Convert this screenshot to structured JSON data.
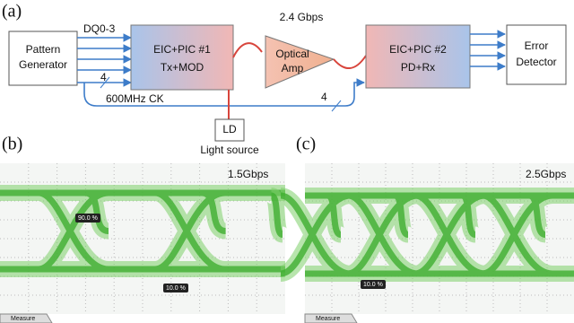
{
  "diagram": {
    "label": "(a)",
    "pattern_generator": [
      "Pattern",
      "Generator"
    ],
    "dq_label": "DQ0-3",
    "bus_width_tx": "4",
    "clock_label": "600MHz CK",
    "bus_width_rx": "4",
    "eic1": [
      "EIC+PIC #1",
      "Tx+MOD"
    ],
    "rate_label": "2.4 Gbps",
    "amp": [
      "Optical",
      "Amp"
    ],
    "eic2": [
      "EIC+PIC #2",
      "PD+Rx"
    ],
    "error_detector": [
      "Error",
      "Detector"
    ],
    "ld": "LD",
    "light_source": "Light source"
  },
  "eye_b": {
    "label": "(b)",
    "rate": "1.5Gbps",
    "marker_top": "90.0 %",
    "marker_bottom": "10.0 %",
    "tab": "Measure"
  },
  "eye_c": {
    "label": "(c)",
    "rate": "2.5Gbps",
    "marker_bottom": "10.0 %",
    "tab": "Measure"
  }
}
